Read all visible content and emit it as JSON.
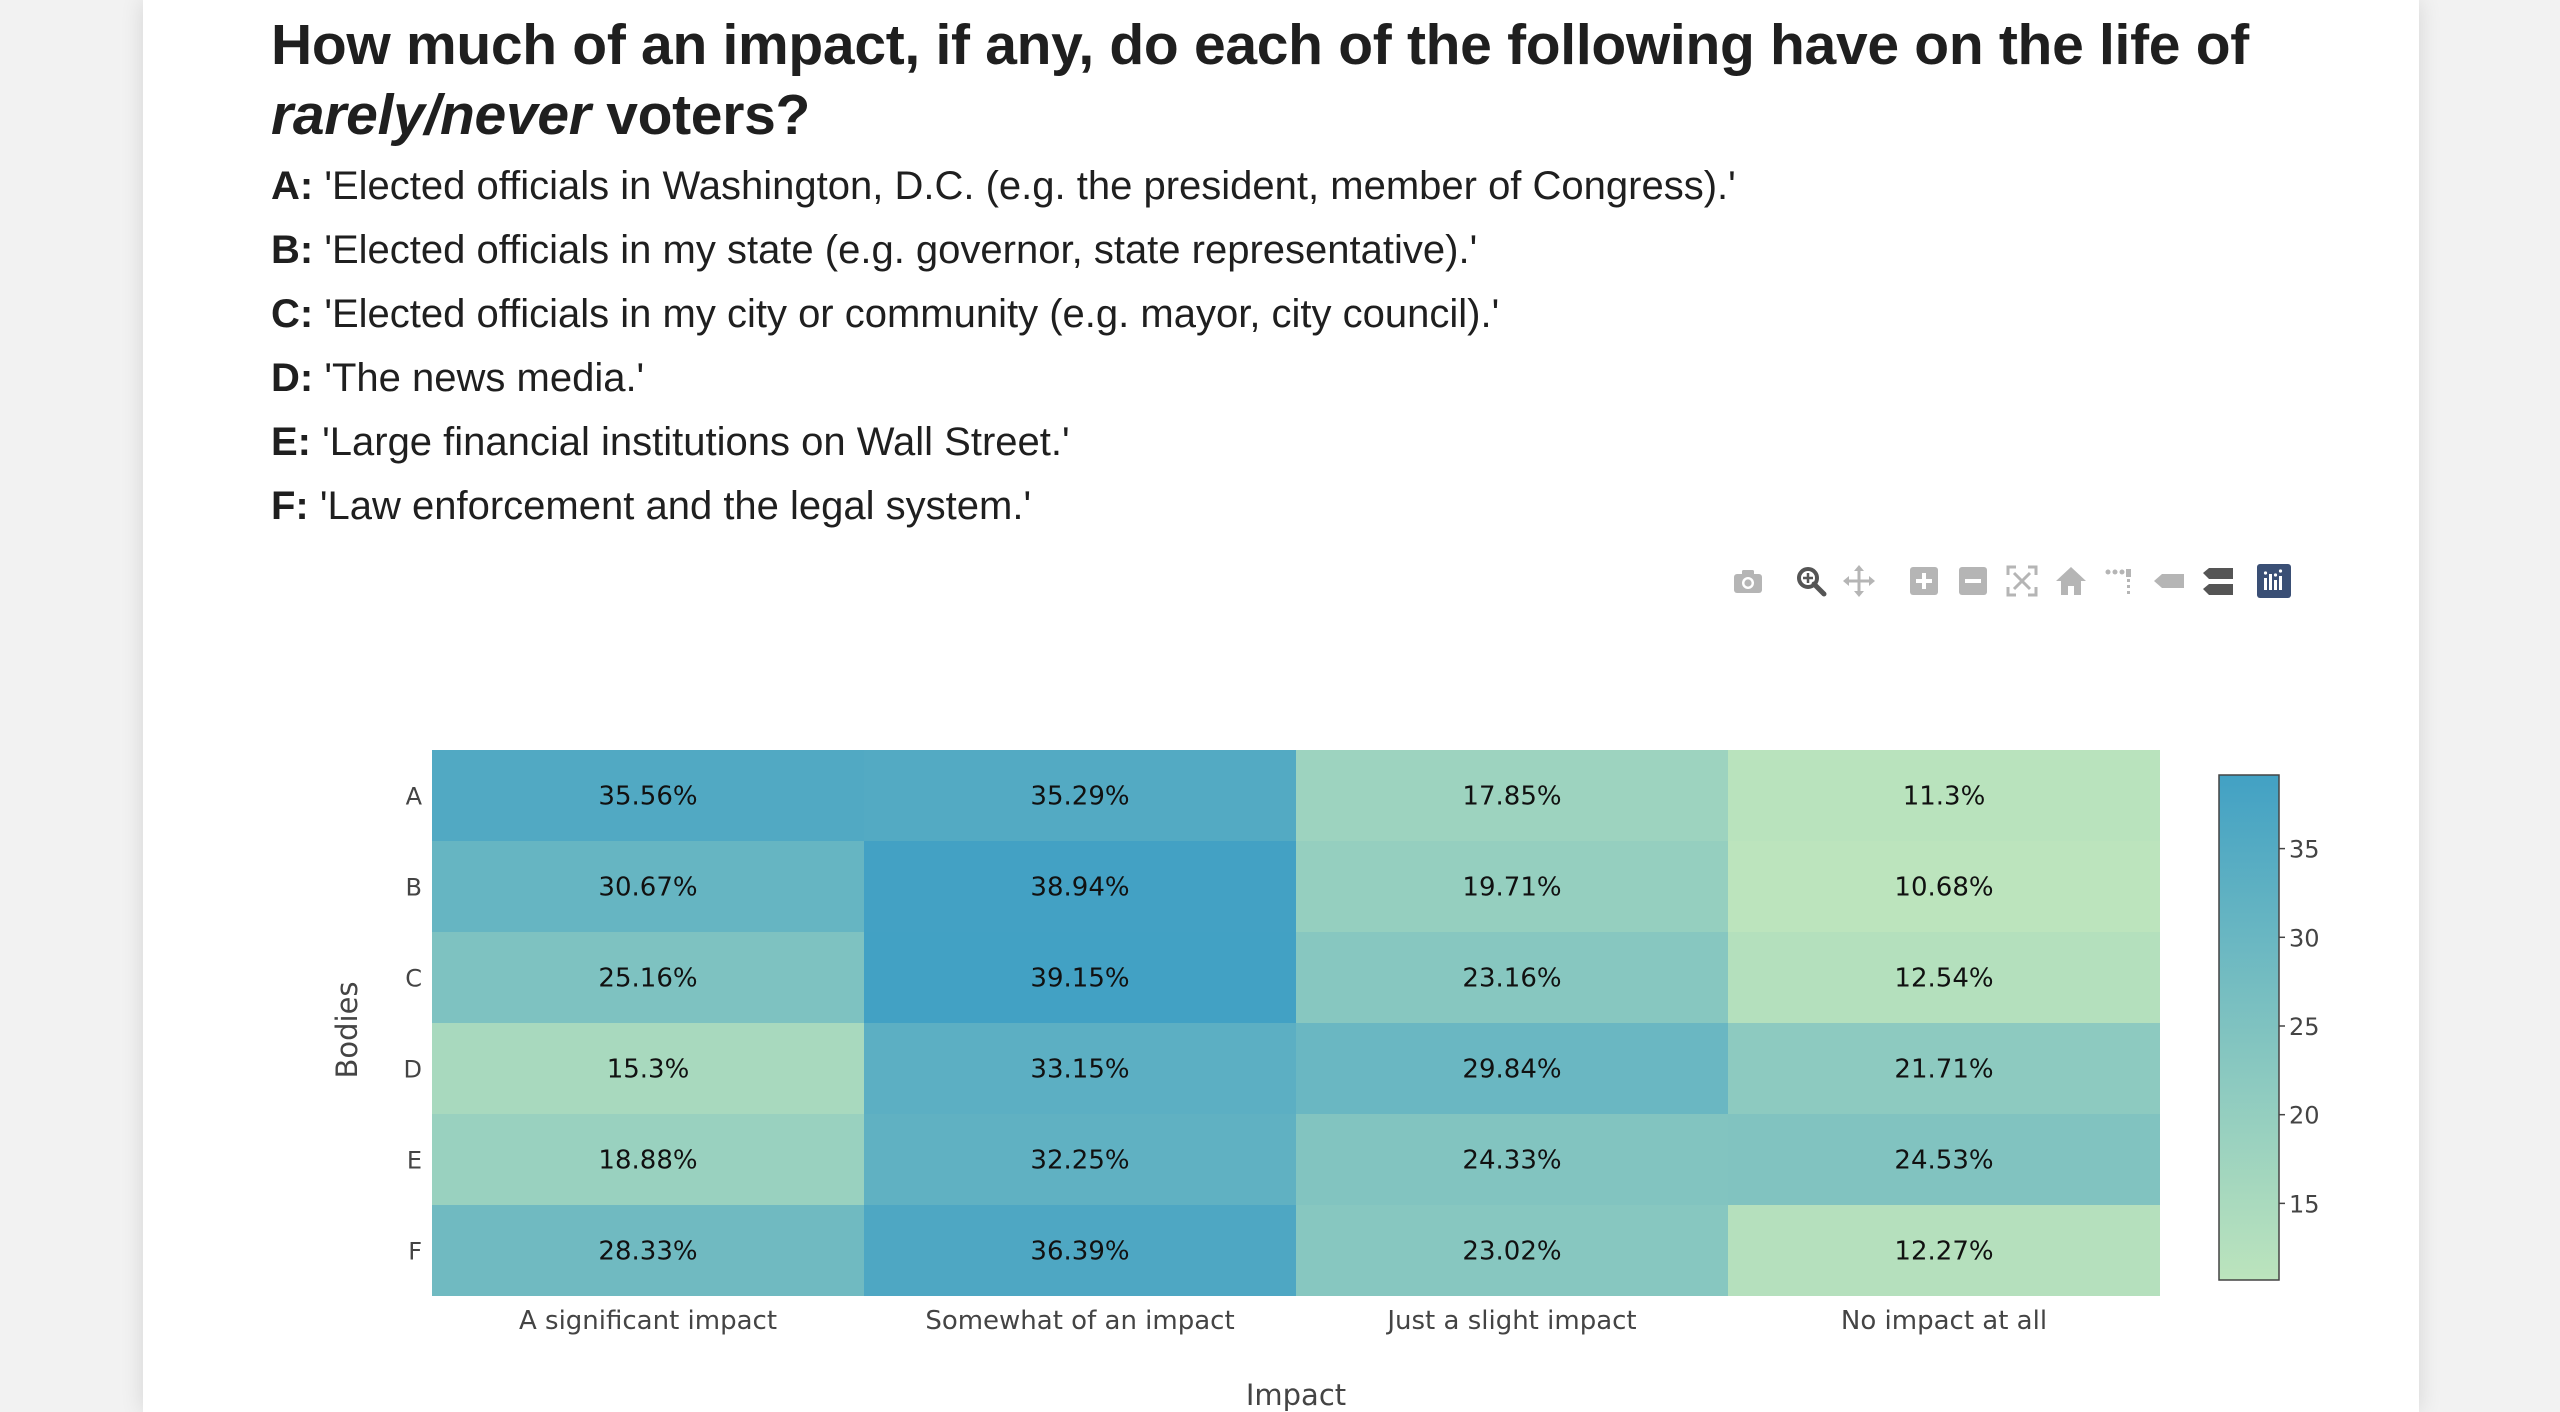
{
  "header": {
    "title_line1": "How much of an impact, if any, do each of the following have on the life of",
    "title_emph": "rarely/never",
    "title_rest": " voters?"
  },
  "questions": [
    {
      "key": "A:",
      "text": " 'Elected officials in Washington, D.C. (e.g. the president, member of Congress).'"
    },
    {
      "key": "B:",
      "text": " 'Elected officials in my state (e.g. governor, state representative).'"
    },
    {
      "key": "C:",
      "text": " 'Elected officials in my city or community (e.g. mayor, city council).'"
    },
    {
      "key": "D:",
      "text": " 'The news media.'"
    },
    {
      "key": "E:",
      "text": " 'Large financial institutions on Wall Street.'"
    },
    {
      "key": "F:",
      "text": " 'Law enforcement and the legal system.'"
    }
  ],
  "modebar": {
    "icons": [
      "camera-icon",
      "zoom-icon",
      "pan-icon",
      "zoom-in-icon",
      "zoom-out-icon",
      "autoscale-icon",
      "reset-axes-icon",
      "spike-lines-icon",
      "hover-closest-icon",
      "hover-compare-icon",
      "plotly-logo-icon"
    ]
  },
  "chart_data": {
    "type": "heatmap",
    "xlabel": "Impact",
    "ylabel": "Bodies",
    "x": [
      "A significant impact",
      "Somewhat of an impact",
      "Just a slight impact",
      "No impact at all"
    ],
    "y": [
      "A",
      "B",
      "C",
      "D",
      "E",
      "F"
    ],
    "z": [
      [
        35.56,
        35.29,
        17.85,
        11.3
      ],
      [
        30.67,
        38.94,
        19.71,
        10.68
      ],
      [
        25.16,
        39.15,
        23.16,
        12.54
      ],
      [
        15.3,
        33.15,
        29.84,
        21.71
      ],
      [
        18.88,
        32.25,
        24.33,
        24.53
      ],
      [
        28.33,
        36.39,
        23.02,
        12.27
      ]
    ],
    "labels": [
      [
        "35.56%",
        "35.29%",
        "17.85%",
        "11.3%"
      ],
      [
        "30.67%",
        "38.94%",
        "19.71%",
        "10.68%"
      ],
      [
        "25.16%",
        "39.15%",
        "23.16%",
        "12.54%"
      ],
      [
        "15.3%",
        "33.15%",
        "29.84%",
        "21.71%"
      ],
      [
        "18.88%",
        "32.25%",
        "24.33%",
        "24.53%"
      ],
      [
        "28.33%",
        "36.39%",
        "23.02%",
        "12.27%"
      ]
    ],
    "colorscale": [
      "#bce4bd",
      "#42a1c4"
    ],
    "zmin": 10.68,
    "zmax": 39.15,
    "colorbar_ticks": [
      15,
      20,
      25,
      30,
      35
    ]
  }
}
